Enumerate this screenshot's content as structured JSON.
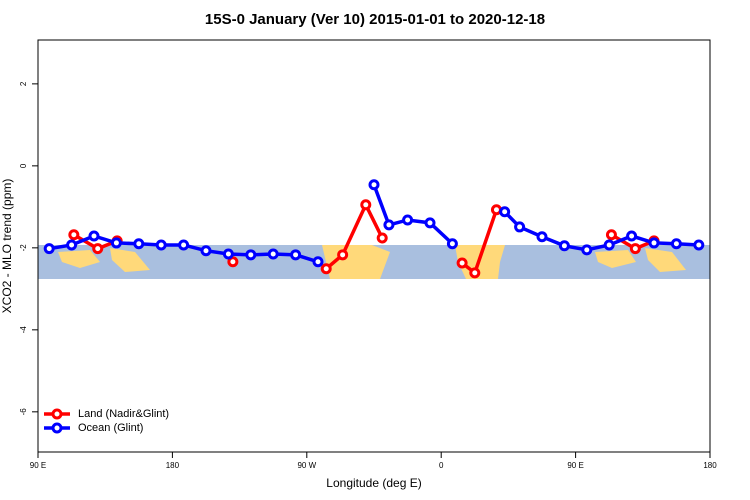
{
  "chart_data": {
    "type": "line",
    "title": "15S-0 January (Ver 10)   2015-01-01 to 2020-12-18",
    "x_label": "Longitude (deg E)",
    "y_label": "XCO2 - MLO trend (ppm)",
    "xlim": [
      90,
      540
    ],
    "ylim": [
      -6.98,
      3.07
    ],
    "xticks": [
      {
        "value": 90,
        "label": "90 E"
      },
      180,
      {
        "value": 270,
        "label": "90 W"
      },
      {
        "value": 360,
        "label": "0"
      },
      {
        "value": 450,
        "label": "90 E"
      },
      {
        "value": 540,
        "label": "180"
      }
    ],
    "yticks": [
      2,
      0,
      -2,
      -4,
      -6
    ],
    "legend": "bottomleft",
    "series": [
      {
        "name": "Land (Nadir&Glint)",
        "color": "#ff0000",
        "x": [
          114,
          130,
          143,
          null,
          220.5,
          null,
          283,
          294,
          309.5,
          320.5,
          null,
          374,
          382.5,
          397,
          null,
          474,
          490,
          502.5
        ],
        "values": [
          -1.68,
          -2.02,
          -1.83,
          null,
          -2.34,
          null,
          -2.51,
          -2.17,
          -0.95,
          -1.76,
          null,
          -2.37,
          -2.61,
          -1.07,
          null,
          -1.68,
          -2.02,
          -1.83
        ]
      },
      {
        "name": "Ocean (Glint)",
        "color": "#0000ff",
        "x": [
          97.5,
          112.5,
          127.5,
          142.5,
          157.5,
          172.5,
          187.5,
          202.5,
          217.5,
          232.5,
          247.5,
          262.5,
          277.5,
          null,
          315,
          325,
          337.5,
          352.5,
          367.5,
          null,
          402.5,
          412.5,
          427.5,
          442.5,
          457.5,
          472.5,
          487.5,
          502.5,
          517.5,
          532.5
        ],
        "values": [
          -2.02,
          -1.93,
          -1.71,
          -1.88,
          -1.9,
          -1.93,
          -1.93,
          -2.07,
          -2.15,
          -2.17,
          -2.15,
          -2.17,
          -2.34,
          null,
          -0.46,
          -1.44,
          -1.32,
          -1.39,
          -1.9,
          null,
          -1.12,
          -1.49,
          -1.73,
          -1.95,
          -2.05,
          -1.93,
          -1.71,
          -1.88,
          -1.9,
          -1.93
        ]
      }
    ]
  }
}
